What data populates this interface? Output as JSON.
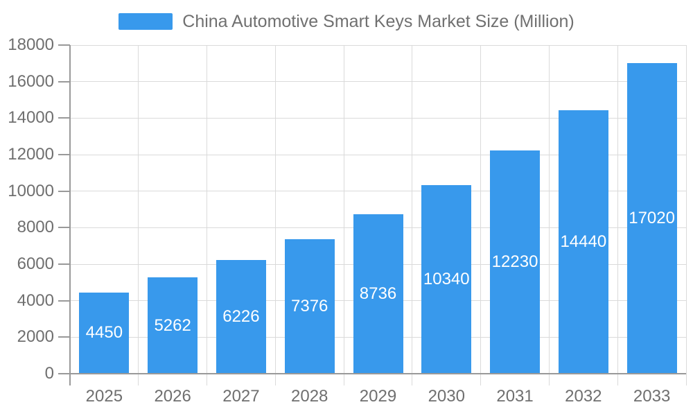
{
  "chart_data": {
    "type": "bar",
    "title": "China Automotive Smart Keys Market Size (Million)",
    "categories": [
      "2025",
      "2026",
      "2027",
      "2028",
      "2029",
      "2030",
      "2031",
      "2032",
      "2033"
    ],
    "values": [
      4450,
      5262,
      6226,
      7376,
      8736,
      10340,
      12230,
      14440,
      17020
    ],
    "xlabel": "",
    "ylabel": "",
    "ylim": [
      0,
      18000
    ],
    "yticks": [
      0,
      2000,
      4000,
      6000,
      8000,
      10000,
      12000,
      14000,
      16000,
      18000
    ],
    "grid": "horizontal and vertical light gray gridlines",
    "legend_position": "top-center",
    "colors": {
      "bar": "#3899ec",
      "bar_value_label": "#ffffff",
      "axis_text": "#6f6f6f",
      "title_text": "#707070",
      "grid_line": "#dadada",
      "axis_line": "#999999",
      "background": "#ffffff"
    }
  }
}
